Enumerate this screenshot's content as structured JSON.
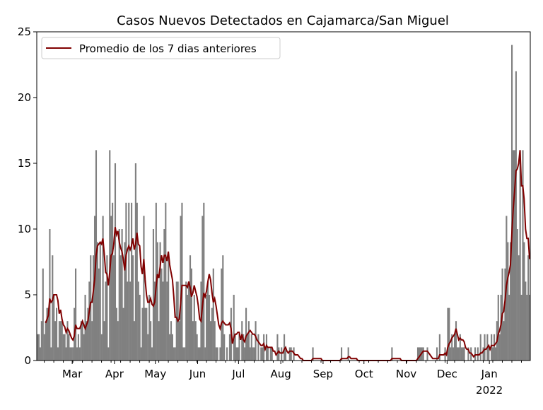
{
  "chart_data": {
    "type": "bar",
    "title": "Casos Nuevos Detectados en Cajamarca/San Miguel",
    "xlabel": "",
    "ylabel": "",
    "ylim": [
      0,
      25
    ],
    "yticks": [
      "0",
      "5",
      "10",
      "15",
      "20",
      "25"
    ],
    "start_date": "2021-02-03",
    "xticks": [
      {
        "label": "Mar",
        "day": 26
      },
      {
        "label": "Apr",
        "day": 57
      },
      {
        "label": "May",
        "day": 87
      },
      {
        "label": "Jun",
        "day": 118
      },
      {
        "label": "Jul",
        "day": 148
      },
      {
        "label": "Aug",
        "day": 179
      },
      {
        "label": "Sep",
        "day": 210
      },
      {
        "label": "Oct",
        "day": 240
      },
      {
        "label": "Nov",
        "day": 271
      },
      {
        "label": "Dec",
        "day": 301
      },
      {
        "label": "Jan",
        "day": 332,
        "sublabel": "2022"
      }
    ],
    "legend": {
      "position": "top-left",
      "entries": [
        "Promedio de los 7 dias anteriores"
      ]
    },
    "colors": {
      "bars": "#808080",
      "line": "#800000"
    },
    "rolling_window": 7,
    "values": [
      2,
      2,
      1,
      3,
      7,
      2,
      3,
      4,
      4,
      10,
      1,
      8,
      5,
      3,
      4,
      1,
      3,
      3,
      3,
      2,
      2,
      1,
      3,
      2,
      1,
      1,
      1,
      4,
      7,
      1,
      2,
      1,
      3,
      3,
      2,
      5,
      3,
      4,
      6,
      8,
      3,
      8,
      11,
      16,
      9,
      7,
      9,
      2,
      11,
      3,
      6,
      8,
      1,
      16,
      11,
      12,
      8,
      15,
      4,
      3,
      10,
      8,
      10,
      4,
      9,
      12,
      6,
      12,
      6,
      12,
      8,
      3,
      15,
      12,
      6,
      5,
      1,
      4,
      11,
      4,
      4,
      2,
      5,
      3,
      1,
      10,
      6,
      12,
      9,
      3,
      9,
      7,
      6,
      10,
      12,
      6,
      8,
      2,
      3,
      2,
      1,
      1,
      6,
      6,
      3,
      11,
      12,
      1,
      1,
      6,
      5,
      6,
      8,
      7,
      3,
      5,
      3,
      2,
      1,
      1,
      6,
      11,
      12,
      1,
      5,
      6,
      5,
      3,
      4,
      7,
      3,
      1,
      1,
      0,
      1,
      7,
      8,
      2,
      0,
      1,
      0,
      2,
      4,
      0,
      5,
      2,
      1,
      1,
      2,
      0,
      3,
      2,
      1,
      4,
      2,
      3,
      1,
      2,
      1,
      1,
      3,
      0,
      2,
      0,
      1,
      1,
      2,
      0,
      2,
      1,
      0,
      1,
      1,
      0,
      0,
      0,
      2,
      1,
      0,
      1,
      0,
      2,
      1,
      0,
      0,
      1,
      1,
      0,
      1,
      0,
      0,
      0,
      0,
      0,
      0,
      0,
      0,
      0,
      0,
      0,
      0,
      0,
      1,
      0,
      0,
      0,
      0,
      0,
      0,
      0,
      0,
      0,
      0,
      0,
      0,
      0,
      0,
      0,
      0,
      0,
      0,
      0,
      0,
      1,
      0,
      0,
      0,
      0,
      1,
      0,
      0,
      0,
      0,
      0,
      0,
      0,
      0,
      0,
      0,
      0,
      0,
      0,
      0,
      0,
      0,
      0,
      0,
      0,
      0,
      0,
      0,
      0,
      0,
      0,
      0,
      0,
      0,
      0,
      0,
      0,
      1,
      0,
      0,
      0,
      0,
      0,
      0,
      0,
      0,
      0,
      0,
      0,
      0,
      0,
      0,
      0,
      0,
      0,
      0,
      1,
      1,
      1,
      1,
      1,
      0,
      0,
      1,
      0,
      0,
      0,
      0,
      0,
      0,
      1,
      0,
      2,
      0,
      0,
      0,
      1,
      0,
      4,
      4,
      1,
      2,
      1,
      2,
      3,
      1,
      1,
      2,
      1,
      1,
      1,
      0,
      0,
      1,
      0,
      1,
      0,
      0,
      1,
      0,
      1,
      0,
      2,
      0,
      1,
      2,
      0,
      2,
      1,
      0,
      2,
      1,
      2,
      1,
      3,
      5,
      2,
      5,
      7,
      3,
      7,
      11,
      9,
      5,
      9,
      24,
      16,
      16,
      22,
      10,
      8,
      16,
      5,
      16,
      9,
      6,
      5,
      8,
      5
    ]
  }
}
